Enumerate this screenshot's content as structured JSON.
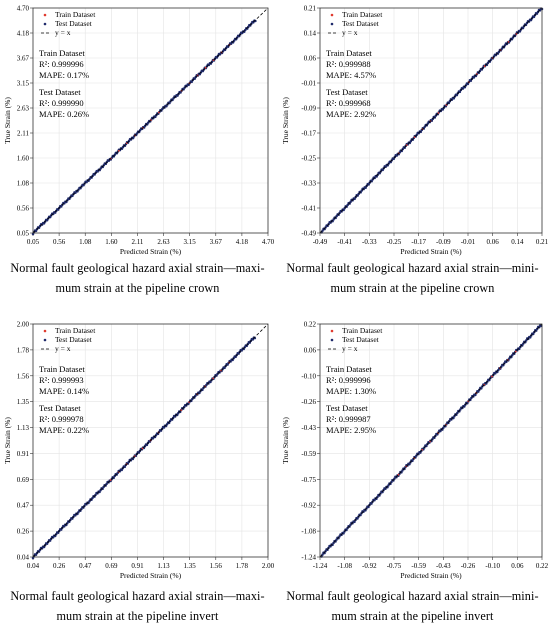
{
  "colors": {
    "train": "#e03a2e",
    "test": "#1f2a6b",
    "line": "#000000",
    "grid": "#e4e4e4",
    "frame": "#333333"
  },
  "legend": {
    "train": "Train Dataset",
    "test": "Test Dataset",
    "line": "y = x"
  },
  "chart_data": [
    {
      "type": "scatter",
      "xlabel": "Predicted Strain (%)",
      "ylabel": "True Strain (%)",
      "ticks": [
        "0.05",
        "0.56",
        "1.08",
        "1.60",
        "2.11",
        "2.63",
        "3.15",
        "3.67",
        "4.18",
        "4.70"
      ],
      "lim": [
        0.05,
        4.7
      ],
      "grid": true,
      "legend_position": "top-left",
      "data_range": [
        0.05,
        4.45
      ],
      "series": [
        {
          "name": "Train Dataset",
          "color": "#e03a2e"
        },
        {
          "name": "Test Dataset",
          "color": "#1f2a6b"
        },
        {
          "name": "y = x",
          "color": "#000000"
        }
      ],
      "train_heading": "Train Dataset",
      "train_r2": "R²: 0.999996",
      "train_mape": "MAPE: 0.17%",
      "test_heading": "Test Dataset",
      "test_r2": "R²: 0.999990",
      "test_mape": "MAPE: 0.26%",
      "caption_line1": "Normal fault geological hazard axial strain—maxi-",
      "caption_line2": "mum strain at the pipeline crown"
    },
    {
      "type": "scatter",
      "xlabel": "Predicted Strain (%)",
      "ylabel": "True Strain (%)",
      "ticks": [
        "-0.49",
        "-0.41",
        "-0.33",
        "-0.25",
        "-0.17",
        "-0.09",
        "-0.01",
        "0.06",
        "0.14",
        "0.21"
      ],
      "lim": [
        -0.49,
        0.21
      ],
      "grid": true,
      "legend_position": "top-left",
      "data_range": [
        -0.485,
        0.21
      ],
      "series": [
        {
          "name": "Train Dataset",
          "color": "#e03a2e"
        },
        {
          "name": "Test Dataset",
          "color": "#1f2a6b"
        },
        {
          "name": "y = x",
          "color": "#000000"
        }
      ],
      "train_heading": "Train Dataset",
      "train_r2": "R²: 0.999988",
      "train_mape": "MAPE: 4.57%",
      "test_heading": "Test Dataset",
      "test_r2": "R²: 0.999968",
      "test_mape": "MAPE: 2.92%",
      "caption_line1": "Normal fault geological hazard axial strain—mini-",
      "caption_line2": "mum strain at the pipeline crown"
    },
    {
      "type": "scatter",
      "xlabel": "Predicted Strain (%)",
      "ylabel": "True Strain (%)",
      "ticks": [
        "0.04",
        "0.26",
        "0.47",
        "0.69",
        "0.91",
        "1.13",
        "1.35",
        "1.56",
        "1.78",
        "2.00"
      ],
      "lim": [
        0.04,
        2.0
      ],
      "grid": true,
      "legend_position": "top-left",
      "data_range": [
        0.04,
        1.89
      ],
      "series": [
        {
          "name": "Train Dataset",
          "color": "#e03a2e"
        },
        {
          "name": "Test Dataset",
          "color": "#1f2a6b"
        },
        {
          "name": "y = x",
          "color": "#000000"
        }
      ],
      "train_heading": "Train Dataset",
      "train_r2": "R²: 0.999993",
      "train_mape": "MAPE: 0.14%",
      "test_heading": "Test Dataset",
      "test_r2": "R²: 0.999978",
      "test_mape": "MAPE: 0.22%",
      "caption_line1": "Normal fault geological hazard axial strain—maxi-",
      "caption_line2": "mum strain at the pipeline invert"
    },
    {
      "type": "scatter",
      "xlabel": "Predicted Strain (%)",
      "ylabel": "True Strain (%)",
      "ticks": [
        "-1.24",
        "-1.08",
        "-0.92",
        "-0.75",
        "-0.59",
        "-0.43",
        "-0.26",
        "-0.10",
        "0.06",
        "0.22"
      ],
      "lim": [
        -1.24,
        0.22
      ],
      "grid": true,
      "legend_position": "top-left",
      "data_range": [
        -1.23,
        0.215
      ],
      "series": [
        {
          "name": "Train Dataset",
          "color": "#e03a2e"
        },
        {
          "name": "Test Dataset",
          "color": "#1f2a6b"
        },
        {
          "name": "y = x",
          "color": "#000000"
        }
      ],
      "train_heading": "Train Dataset",
      "train_r2": "R²: 0.999996",
      "train_mape": "MAPE: 1.30%",
      "test_heading": "Test Dataset",
      "test_r2": "R²: 0.999987",
      "test_mape": "MAPE: 2.95%",
      "caption_line1": "Normal fault geological hazard axial strain—mini-",
      "caption_line2": "mum strain at the pipeline invert"
    }
  ]
}
